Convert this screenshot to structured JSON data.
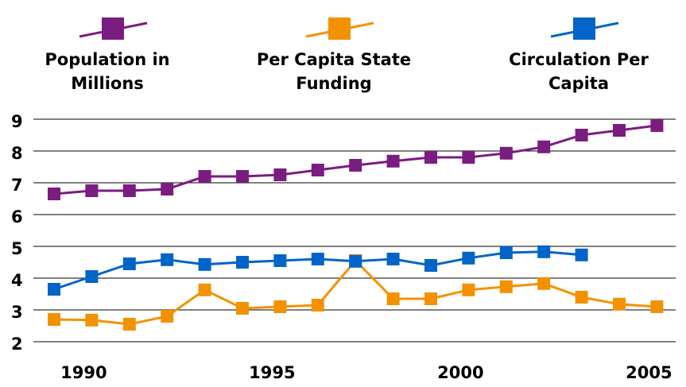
{
  "chart_data": {
    "type": "line",
    "categories": [
      null,
      "1990",
      null,
      null,
      null,
      null,
      "1995",
      null,
      null,
      null,
      null,
      "2000",
      null,
      null,
      null,
      null,
      "2005"
    ],
    "series": [
      {
        "name": "Population in Millions",
        "color": "#7b1c80",
        "values": [
          6.65,
          6.75,
          6.75,
          6.8,
          7.2,
          7.2,
          7.25,
          7.4,
          7.55,
          7.68,
          7.8,
          7.8,
          7.93,
          8.13,
          8.5,
          8.65,
          8.8
        ]
      },
      {
        "name": "Per Capita State Funding",
        "color": "#f39200",
        "values": [
          2.7,
          2.68,
          2.55,
          2.8,
          3.63,
          3.05,
          3.1,
          3.15,
          4.55,
          3.35,
          3.35,
          3.63,
          3.73,
          3.83,
          3.4,
          3.18,
          3.1
        ]
      },
      {
        "name": "Circulation Per Capita",
        "color": "#0064c8",
        "values": [
          3.65,
          4.05,
          4.45,
          4.58,
          4.43,
          4.5,
          4.55,
          4.6,
          4.53,
          4.6,
          4.4,
          4.63,
          4.8,
          4.83,
          4.73,
          null,
          null
        ]
      }
    ],
    "ylim": [
      2,
      9
    ],
    "yticks": [
      2,
      3,
      4,
      5,
      6,
      7,
      8,
      9
    ],
    "grid": true
  }
}
